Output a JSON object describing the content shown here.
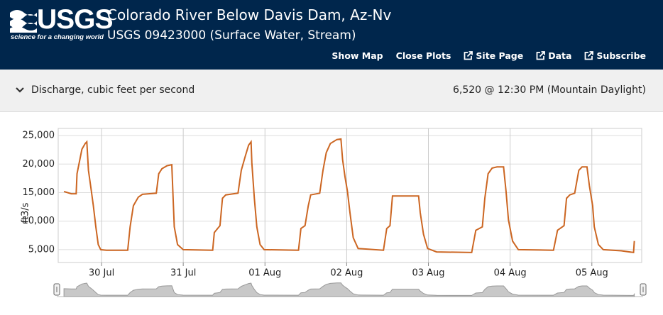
{
  "header": {
    "logo": "USGS",
    "tagline": "science for a changing world",
    "title": "Colorado River Below Davis Dam, Az-Nv",
    "subtitle": "USGS 09423000 (Surface Water, Stream)",
    "nav": [
      "Show Map",
      "Close Plots",
      "Site Page",
      "Data",
      "Subscribe"
    ]
  },
  "panel": {
    "label": "Discharge, cubic feet per second",
    "latest": "6,520 @ 12:30 PM (Mountain Daylight)"
  },
  "chart_data": {
    "type": "line",
    "y_label": "ft3/s",
    "color": "#cc6622",
    "grid": true,
    "xlim": [
      -0.53,
      6.61
    ],
    "ylim": [
      2750,
      26250
    ],
    "xticks": [
      {
        "value": 0,
        "label": "30 Jul"
      },
      {
        "value": 1,
        "label": "31 Jul"
      },
      {
        "value": 2,
        "label": "01 Aug"
      },
      {
        "value": 3,
        "label": "02 Aug"
      },
      {
        "value": 4,
        "label": "03 Aug"
      },
      {
        "value": 5,
        "label": "04 Aug"
      },
      {
        "value": 6,
        "label": "05 Aug"
      }
    ],
    "yticks": [
      {
        "value": 5000,
        "label": "5,000"
      },
      {
        "value": 10000,
        "label": "10,000"
      },
      {
        "value": 15000,
        "label": "15,000"
      },
      {
        "value": 20000,
        "label": "20,000"
      },
      {
        "value": 25000,
        "label": "25,000"
      }
    ],
    "x": [
      -0.46,
      -0.37,
      -0.31,
      -0.3,
      -0.24,
      -0.2,
      -0.18,
      -0.16,
      -0.13,
      -0.1,
      -0.07,
      -0.04,
      -0.01,
      0.06,
      0.32,
      0.35,
      0.39,
      0.45,
      0.5,
      0.67,
      0.7,
      0.74,
      0.8,
      0.86,
      0.88,
      0.89,
      0.93,
      1.0,
      1.36,
      1.38,
      1.42,
      1.45,
      1.48,
      1.52,
      1.67,
      1.71,
      1.76,
      1.8,
      1.83,
      1.84,
      1.87,
      1.9,
      1.94,
      1.99,
      2.41,
      2.44,
      2.49,
      2.53,
      2.56,
      2.67,
      2.71,
      2.75,
      2.8,
      2.88,
      2.93,
      2.95,
      2.98,
      3.01,
      3.04,
      3.08,
      3.14,
      3.45,
      3.49,
      3.53,
      3.56,
      3.88,
      3.9,
      3.94,
      3.99,
      4.1,
      4.53,
      4.58,
      4.66,
      4.69,
      4.73,
      4.78,
      4.84,
      4.92,
      4.95,
      4.98,
      5.03,
      5.1,
      5.53,
      5.58,
      5.66,
      5.69,
      5.73,
      5.79,
      5.84,
      5.88,
      5.94,
      5.97,
      6.01,
      6.03,
      6.08,
      6.14,
      6.36,
      6.51,
      6.52
    ],
    "values": [
      15200,
      14800,
      14800,
      18300,
      22600,
      23600,
      23900,
      18900,
      15800,
      12700,
      9000,
      5900,
      5000,
      4900,
      4900,
      9000,
      12700,
      14200,
      14700,
      14900,
      18300,
      19200,
      19700,
      19900,
      12700,
      9000,
      5900,
      5000,
      4900,
      8000,
      8700,
      9200,
      14000,
      14600,
      14900,
      18900,
      21400,
      23300,
      23900,
      20200,
      14000,
      9000,
      5900,
      5000,
      4900,
      8700,
      9200,
      12700,
      14600,
      14900,
      18900,
      22000,
      23600,
      24300,
      24400,
      20800,
      17700,
      15200,
      11500,
      7100,
      5200,
      4900,
      8700,
      9200,
      14400,
      14400,
      11500,
      7700,
      5200,
      4600,
      4500,
      8400,
      9000,
      14000,
      18300,
      19300,
      19500,
      19500,
      15200,
      10200,
      6500,
      5000,
      4900,
      8400,
      9200,
      14000,
      14600,
      14900,
      18900,
      19500,
      19500,
      16200,
      12700,
      9000,
      5900,
      5000,
      4800,
      4500,
      6520
    ]
  }
}
